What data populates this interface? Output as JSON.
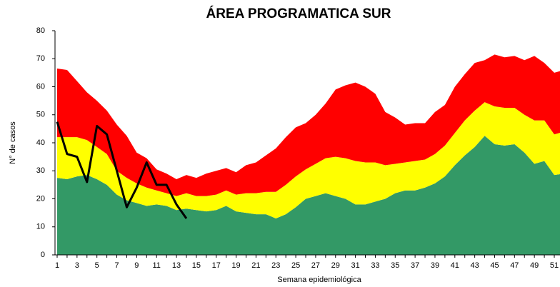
{
  "chart_data": {
    "type": "stacked_area_line",
    "title": "ÁREA PROGRAMATICA SUR",
    "x_label": "Semana epidemiológica",
    "y_label": "N° de casos",
    "categories": [
      1,
      null,
      3,
      null,
      5,
      null,
      7,
      null,
      9,
      null,
      11,
      null,
      13,
      null,
      15,
      null,
      17,
      null,
      19,
      null,
      21,
      null,
      23,
      null,
      25,
      null,
      27,
      null,
      29,
      null,
      31,
      null,
      33,
      null,
      35,
      null,
      37,
      null,
      39,
      null,
      41,
      null,
      43,
      null,
      45,
      null,
      47,
      null,
      49,
      null,
      51,
      null
    ],
    "ylim": [
      0,
      80
    ],
    "yticks": [
      0,
      10,
      20,
      30,
      40,
      50,
      60,
      70,
      80
    ],
    "series": [
      {
        "color": "#339966",
        "stack": true,
        "values": [
          27.5,
          27,
          28,
          28.5,
          27,
          25,
          21.5,
          19.5,
          18.5,
          17.5,
          18,
          17.5,
          16,
          16.5,
          16,
          15.5,
          16,
          17.5,
          15.5,
          15,
          14.5,
          14.5,
          13,
          14.5,
          17,
          20,
          21,
          22,
          21,
          20,
          18,
          18,
          19,
          20,
          22,
          23,
          23,
          24,
          25.5,
          28,
          32,
          35.5,
          38.5,
          42.5,
          39.5,
          39,
          39.5,
          36.5,
          32.5,
          33.5,
          28.5,
          29
        ]
      },
      {
        "color": "#ffff00",
        "stack": true,
        "values": [
          14.5,
          15,
          14,
          12.5,
          11.5,
          11,
          8.5,
          8,
          7,
          6.5,
          5,
          4.5,
          5,
          5.5,
          5,
          5.5,
          5.5,
          5.5,
          6,
          7,
          7.5,
          8,
          9.5,
          10.5,
          11,
          10.5,
          11.5,
          12.5,
          14,
          14.5,
          15.5,
          15,
          14,
          12,
          10.5,
          10,
          10.5,
          10,
          10.5,
          11,
          11.5,
          12.5,
          13,
          12,
          13.5,
          13.5,
          13,
          13.5,
          15.5,
          14.5,
          14.5,
          15
        ]
      },
      {
        "color": "#ff0000",
        "stack": true,
        "values": [
          24.5,
          24,
          20,
          17,
          16.5,
          15.5,
          16.5,
          15,
          11,
          10.5,
          7.5,
          7,
          6,
          6.5,
          6.5,
          8,
          8.5,
          8,
          8,
          10,
          11,
          13,
          15.5,
          17,
          17.5,
          16.5,
          17.5,
          19.5,
          24,
          26,
          28,
          27,
          24.5,
          19,
          16.5,
          13.5,
          13.5,
          13,
          15,
          14.5,
          16.5,
          16.5,
          17,
          15,
          18.5,
          18,
          18.5,
          19.5,
          23,
          20.5,
          22,
          22
        ]
      },
      {
        "color": "#000000",
        "stack": false,
        "values": [
          47.5,
          36,
          35,
          26,
          46,
          43,
          30,
          17,
          24,
          33,
          25,
          25,
          18,
          13,
          null,
          null,
          null,
          null,
          null,
          null,
          null,
          null,
          null,
          null,
          null,
          null,
          null,
          null,
          null,
          null,
          null,
          null,
          null,
          null,
          null,
          null,
          null,
          null,
          null,
          null,
          null,
          null,
          null,
          null,
          null,
          null,
          null,
          null,
          null,
          null,
          null,
          null
        ]
      }
    ]
  }
}
